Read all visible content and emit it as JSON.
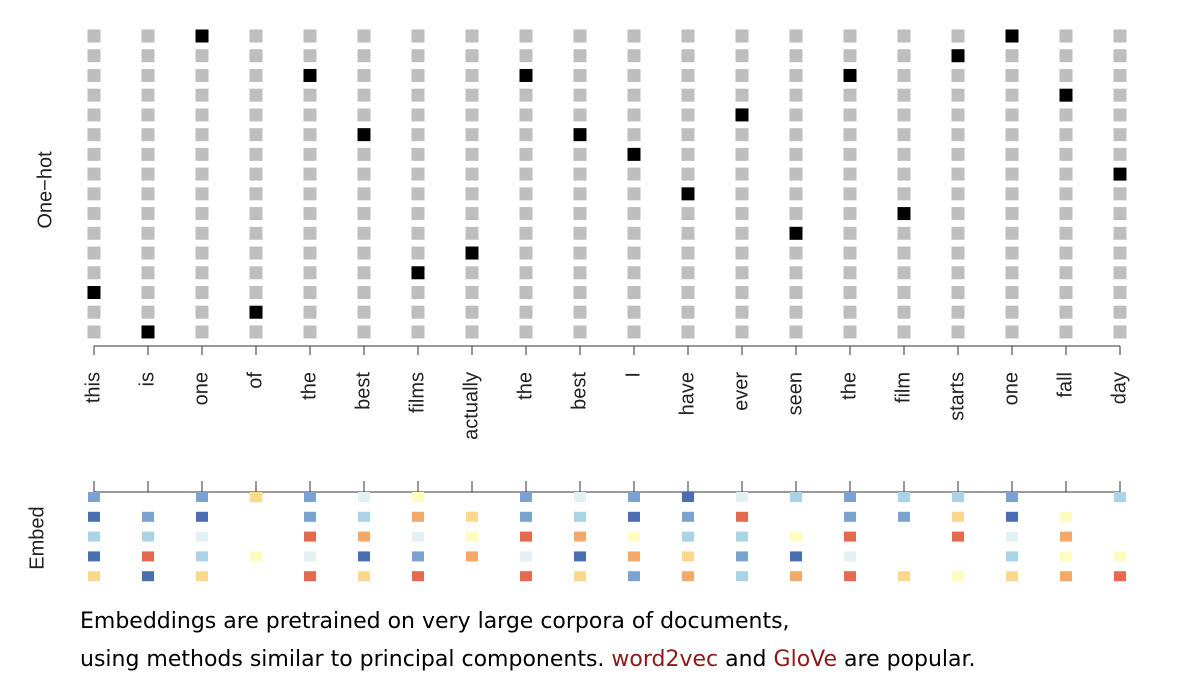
{
  "axis_labels": {
    "one_hot": "One−hot",
    "embed": "Embed"
  },
  "words": [
    "this",
    "is",
    "one",
    "of",
    "the",
    "best",
    "films",
    "actually",
    "the",
    "best",
    "I",
    "have",
    "ever",
    "seen",
    "the",
    "film",
    "starts",
    "one",
    "fall",
    "day"
  ],
  "one_hot": {
    "rows": 16,
    "active_row": [
      13,
      15,
      0,
      14,
      2,
      5,
      12,
      11,
      2,
      5,
      6,
      8,
      4,
      10,
      2,
      9,
      1,
      0,
      3,
      7
    ],
    "off_color": "#bebebe",
    "on_color": "#000000"
  },
  "embed": {
    "colors": [
      [
        "#7ba3cf",
        "#4a6fb0",
        "#abd3e6",
        "#4a6fb0",
        "#fbd88e"
      ],
      [
        null,
        "#7ba3cf",
        "#abd3e6",
        "#e5694f",
        "#4a6fb0"
      ],
      [
        "#7ba3cf",
        "#4a6fb0",
        "#e3f1f5",
        "#abd3e6",
        "#fbd88e"
      ],
      [
        "#fbd88e",
        null,
        null,
        "#fefcc0",
        null
      ],
      [
        "#7ba3cf",
        "#7ba3cf",
        "#e5694f",
        "#e3f1f5",
        "#e5694f"
      ],
      [
        "#e3f1f5",
        "#abd3e6",
        "#f4a96a",
        "#4a6fb0",
        "#fbd88e"
      ],
      [
        "#fefcc0",
        "#f4a96a",
        "#e3f1f5",
        "#7ba3cf",
        "#e5694f"
      ],
      [
        null,
        "#fbd88e",
        "#fefcc0",
        "#f4a96a",
        null
      ],
      [
        "#7ba3cf",
        "#7ba3cf",
        "#e5694f",
        "#e3f1f5",
        "#e5694f"
      ],
      [
        "#e3f1f5",
        "#abd3e6",
        "#f4a96a",
        "#4a6fb0",
        "#fbd88e"
      ],
      [
        "#7ba3cf",
        "#4a6fb0",
        "#fefcc0",
        "#f4a96a",
        "#7ba3cf"
      ],
      [
        "#4a6fb0",
        "#7ba3cf",
        "#abd3e6",
        "#fbd88e",
        "#f4a96a"
      ],
      [
        "#e3f1f5",
        "#e5694f",
        "#abd3e6",
        "#7ba3cf",
        "#abd3e6"
      ],
      [
        "#abd3e6",
        null,
        "#fefcc0",
        "#4a6fb0",
        "#f4a96a"
      ],
      [
        "#7ba3cf",
        "#7ba3cf",
        "#e5694f",
        "#e3f1f5",
        "#e5694f"
      ],
      [
        "#abd3e6",
        "#7ba3cf",
        null,
        null,
        "#fbd88e"
      ],
      [
        "#abd3e6",
        "#fbd88e",
        "#e5694f",
        null,
        "#fefcc0"
      ],
      [
        "#7ba3cf",
        "#4a6fb0",
        "#e3f1f5",
        "#abd3e6",
        "#fbd88e"
      ],
      [
        null,
        "#fefcc0",
        "#f4a96a",
        "#fefcc0",
        "#f4a96a"
      ],
      [
        "#abd3e6",
        null,
        null,
        "#fefcc0",
        "#e5694f"
      ]
    ]
  },
  "caption": {
    "line1": "Embeddings are pretrained on very large corpora of documents,",
    "line2": [
      "using methods similar to principal components. ",
      "word2vec",
      " and ",
      "GloVe",
      " are popular."
    ]
  }
}
